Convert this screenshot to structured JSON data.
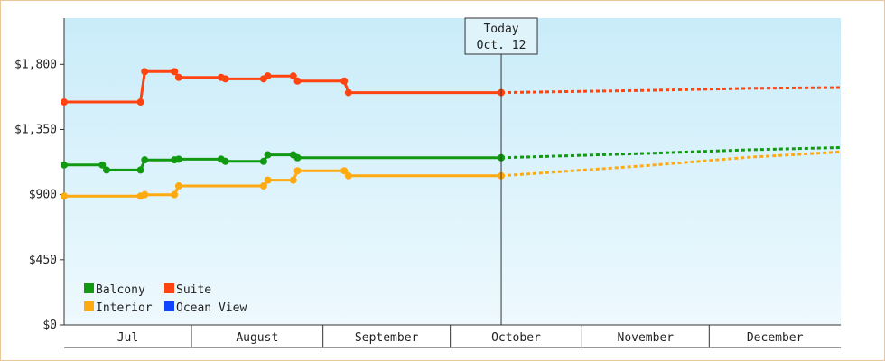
{
  "chart_data": {
    "type": "line",
    "title": "",
    "xlabel": "",
    "ylabel": "",
    "ylim": [
      0,
      2120
    ],
    "y_ticks": [
      0,
      450,
      900,
      1350,
      1800
    ],
    "y_tick_labels": [
      "$0",
      "$450",
      "$900",
      "$1,350",
      "$1,800"
    ],
    "x_range": [
      "2024-07-01",
      "2024-12-31"
    ],
    "months": [
      {
        "label": "Jul",
        "start": "2024-07-01",
        "end": "2024-07-31"
      },
      {
        "label": "August",
        "start": "2024-07-31",
        "end": "2024-08-31"
      },
      {
        "label": "September",
        "start": "2024-08-31",
        "end": "2024-09-30"
      },
      {
        "label": "October",
        "start": "2024-09-30",
        "end": "2024-10-31"
      },
      {
        "label": "November",
        "start": "2024-10-31",
        "end": "2024-11-30"
      },
      {
        "label": "December",
        "start": "2024-11-30",
        "end": "2024-12-31"
      }
    ],
    "today": {
      "line1": "Today",
      "line2": "Oct. 12",
      "date": "2024-10-12"
    },
    "grid": false,
    "legend_position": "bottom-left",
    "series": [
      {
        "name": "Balcony",
        "color": "#119911",
        "points": [
          {
            "x": "2024-07-01",
            "y": 1105
          },
          {
            "x": "2024-07-10",
            "y": 1105
          },
          {
            "x": "2024-07-11",
            "y": 1070
          },
          {
            "x": "2024-07-19",
            "y": 1070
          },
          {
            "x": "2024-07-20",
            "y": 1140
          },
          {
            "x": "2024-07-27",
            "y": 1140
          },
          {
            "x": "2024-07-28",
            "y": 1145
          },
          {
            "x": "2024-08-07",
            "y": 1145
          },
          {
            "x": "2024-08-08",
            "y": 1130
          },
          {
            "x": "2024-08-17",
            "y": 1130
          },
          {
            "x": "2024-08-18",
            "y": 1175
          },
          {
            "x": "2024-08-24",
            "y": 1175
          },
          {
            "x": "2024-08-25",
            "y": 1155
          },
          {
            "x": "2024-10-12",
            "y": 1155
          }
        ],
        "forecast": [
          {
            "x": "2024-10-12",
            "y": 1155
          },
          {
            "x": "2024-11-15",
            "y": 1185
          },
          {
            "x": "2024-12-10",
            "y": 1210
          },
          {
            "x": "2024-12-31",
            "y": 1225
          }
        ]
      },
      {
        "name": "Suite",
        "color": "#ff4411",
        "points": [
          {
            "x": "2024-07-01",
            "y": 1540
          },
          {
            "x": "2024-07-19",
            "y": 1540
          },
          {
            "x": "2024-07-20",
            "y": 1750
          },
          {
            "x": "2024-07-27",
            "y": 1750
          },
          {
            "x": "2024-07-28",
            "y": 1710
          },
          {
            "x": "2024-08-07",
            "y": 1710
          },
          {
            "x": "2024-08-08",
            "y": 1700
          },
          {
            "x": "2024-08-17",
            "y": 1700
          },
          {
            "x": "2024-08-18",
            "y": 1720
          },
          {
            "x": "2024-08-24",
            "y": 1720
          },
          {
            "x": "2024-08-25",
            "y": 1685
          },
          {
            "x": "2024-09-05",
            "y": 1685
          },
          {
            "x": "2024-09-06",
            "y": 1605
          },
          {
            "x": "2024-10-12",
            "y": 1605
          }
        ],
        "forecast": [
          {
            "x": "2024-10-12",
            "y": 1605
          },
          {
            "x": "2024-11-15",
            "y": 1620
          },
          {
            "x": "2024-12-10",
            "y": 1635
          },
          {
            "x": "2024-12-31",
            "y": 1640
          }
        ]
      },
      {
        "name": "Interior",
        "color": "#ffaa11",
        "points": [
          {
            "x": "2024-07-01",
            "y": 890
          },
          {
            "x": "2024-07-19",
            "y": 890
          },
          {
            "x": "2024-07-20",
            "y": 900
          },
          {
            "x": "2024-07-27",
            "y": 900
          },
          {
            "x": "2024-07-28",
            "y": 960
          },
          {
            "x": "2024-08-17",
            "y": 960
          },
          {
            "x": "2024-08-18",
            "y": 1000
          },
          {
            "x": "2024-08-24",
            "y": 1000
          },
          {
            "x": "2024-08-25",
            "y": 1065
          },
          {
            "x": "2024-09-05",
            "y": 1065
          },
          {
            "x": "2024-09-06",
            "y": 1030
          },
          {
            "x": "2024-10-12",
            "y": 1030
          }
        ],
        "forecast": [
          {
            "x": "2024-10-12",
            "y": 1030
          },
          {
            "x": "2024-11-15",
            "y": 1100
          },
          {
            "x": "2024-12-10",
            "y": 1160
          },
          {
            "x": "2024-12-31",
            "y": 1195
          }
        ]
      },
      {
        "name": "Ocean View",
        "color": "#1144ff",
        "points": [],
        "forecast": []
      }
    ]
  }
}
